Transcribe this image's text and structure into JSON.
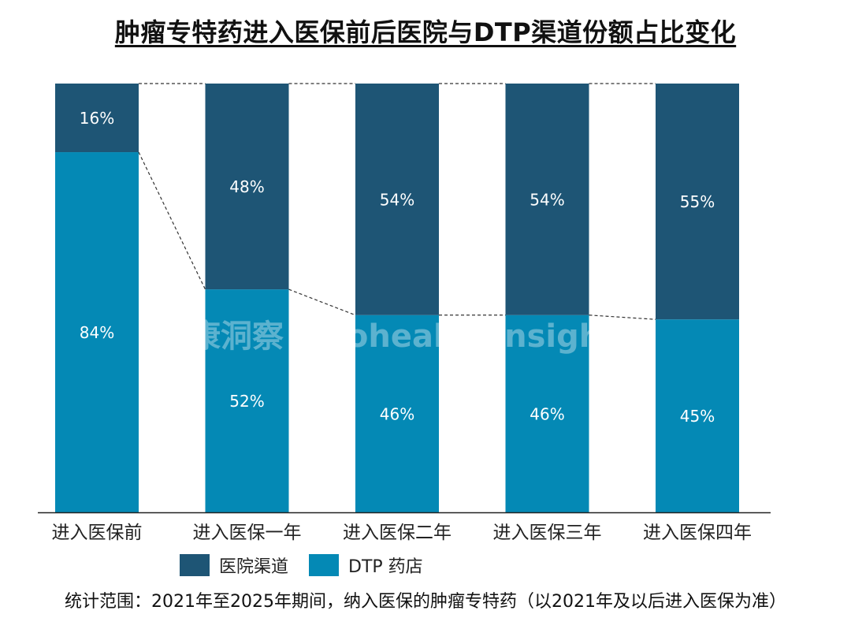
{
  "title": "肿瘤专特药进入医保前后医院与DTP渠道份额占比变化",
  "watermark": "中康洞察 sinohealth Insight",
  "footnote": "统计范围：2021年至2025年期间，纳入医保的肿瘤专特药（以2021年及以后进入医保为准）",
  "colors": {
    "hospital": "#1e5575",
    "dtp": "#0489b5",
    "connector": "#333333",
    "axis": "#222222"
  },
  "chart_data": {
    "type": "bar",
    "stacked": true,
    "percent": true,
    "categories": [
      "进入医保前",
      "进入医保一年",
      "进入医保二年",
      "进入医保三年",
      "进入医保四年"
    ],
    "series": [
      {
        "name": "DTP 药店",
        "values": [
          84,
          52,
          46,
          46,
          45
        ]
      },
      {
        "name": "医院渠道",
        "values": [
          16,
          48,
          54,
          54,
          55
        ]
      }
    ],
    "data_labels": {
      "DTP 药店": [
        "84%",
        "52%",
        "46%",
        "46%",
        "45%"
      ],
      "医院渠道": [
        "16%",
        "48%",
        "54%",
        "54%",
        "55%"
      ]
    },
    "ylim": [
      0,
      100
    ],
    "legend": [
      "医院渠道",
      "DTP 药店"
    ],
    "legend_position": "bottom",
    "connector_lines": true,
    "grid": false
  }
}
